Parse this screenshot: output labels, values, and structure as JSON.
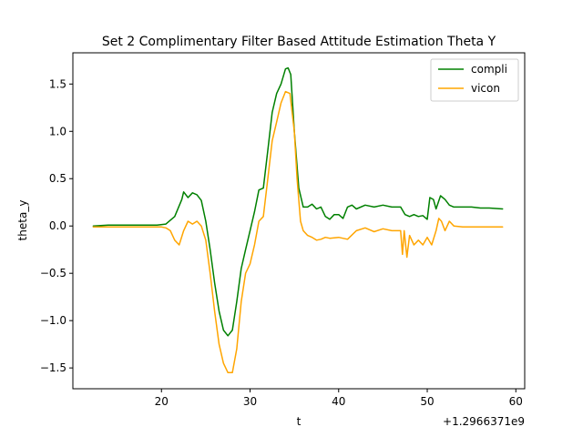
{
  "chart_data": {
    "type": "line",
    "title": "Set 2 Complimentary Filter Based Attitude Estimation Theta Y",
    "xlabel": "t",
    "ylabel": "theta_y",
    "x_offset_label": "+1.2966371e9",
    "xlim": [
      10.0,
      61.0
    ],
    "ylim": [
      -1.72,
      1.83
    ],
    "xticks": [
      20,
      30,
      40,
      50,
      60
    ],
    "xtick_labels": [
      "20",
      "30",
      "40",
      "50",
      "60"
    ],
    "yticks": [
      -1.5,
      -1.0,
      -0.5,
      0.0,
      0.5,
      1.0,
      1.5
    ],
    "ytick_labels": [
      "−1.5",
      "−1.0",
      "−0.5",
      "0.0",
      "0.5",
      "1.0",
      "1.5"
    ],
    "grid": false,
    "legend_position": "top-right",
    "series": [
      {
        "name": "compli",
        "color": "#008000",
        "x": [
          12.3,
          14,
          16,
          18,
          19.5,
          20.5,
          21.5,
          22.3,
          22.5,
          23,
          23.5,
          24,
          24.5,
          25,
          25.5,
          26,
          26.5,
          27,
          27.5,
          28,
          28.5,
          29,
          29.5,
          30,
          30.5,
          31,
          31.5,
          32,
          32.5,
          33,
          33.5,
          34,
          34.3,
          34.6,
          35,
          35.5,
          36,
          36.5,
          37,
          37.5,
          38,
          38.5,
          39,
          39.5,
          40,
          40.5,
          41,
          41.5,
          42,
          43,
          44,
          45,
          46,
          47,
          47.5,
          48,
          48.5,
          49,
          49.5,
          50,
          50.3,
          50.7,
          51,
          51.5,
          52,
          52.5,
          53,
          54,
          55,
          56,
          57,
          58.5
        ],
        "y": [
          0.0,
          0.01,
          0.01,
          0.01,
          0.01,
          0.02,
          0.1,
          0.28,
          0.36,
          0.3,
          0.35,
          0.33,
          0.27,
          0.05,
          -0.25,
          -0.6,
          -0.9,
          -1.1,
          -1.16,
          -1.1,
          -0.8,
          -0.45,
          -0.25,
          -0.05,
          0.15,
          0.38,
          0.4,
          0.8,
          1.2,
          1.4,
          1.5,
          1.66,
          1.67,
          1.6,
          1.0,
          0.4,
          0.2,
          0.2,
          0.23,
          0.18,
          0.2,
          0.1,
          0.07,
          0.12,
          0.12,
          0.08,
          0.2,
          0.22,
          0.18,
          0.22,
          0.2,
          0.22,
          0.2,
          0.2,
          0.12,
          0.1,
          0.12,
          0.1,
          0.11,
          0.07,
          0.3,
          0.28,
          0.18,
          0.32,
          0.28,
          0.22,
          0.2,
          0.2,
          0.2,
          0.19,
          0.19,
          0.18
        ]
      },
      {
        "name": "vicon",
        "color": "#ffa500",
        "x": [
          12.3,
          14,
          16,
          18,
          20,
          20.5,
          21,
          21.5,
          22,
          22.5,
          23,
          23.5,
          24,
          24.5,
          25,
          25.5,
          26,
          26.5,
          27,
          27.5,
          28,
          28.5,
          29,
          29.5,
          30,
          30.5,
          31,
          31.5,
          32,
          32.5,
          33,
          33.5,
          34,
          34.5,
          35,
          35.3,
          35.7,
          36,
          36.5,
          37,
          37.5,
          38,
          38.5,
          39,
          40,
          41,
          42,
          43,
          44,
          45,
          46,
          47,
          47.2,
          47.4,
          47.7,
          48,
          48.5,
          49,
          49.5,
          50,
          50.5,
          51,
          51.3,
          51.6,
          52,
          52.5,
          53,
          54,
          56,
          58.5
        ],
        "y": [
          -0.01,
          -0.01,
          -0.01,
          -0.01,
          -0.01,
          -0.02,
          -0.05,
          -0.15,
          -0.2,
          -0.05,
          0.05,
          0.02,
          0.05,
          0.0,
          -0.15,
          -0.5,
          -0.9,
          -1.25,
          -1.45,
          -1.55,
          -1.55,
          -1.3,
          -0.8,
          -0.5,
          -0.4,
          -0.2,
          0.05,
          0.1,
          0.5,
          0.9,
          1.1,
          1.3,
          1.42,
          1.4,
          1.0,
          0.5,
          0.05,
          -0.05,
          -0.1,
          -0.12,
          -0.15,
          -0.14,
          -0.12,
          -0.13,
          -0.12,
          -0.14,
          -0.05,
          -0.02,
          -0.06,
          -0.03,
          -0.05,
          -0.05,
          -0.3,
          -0.05,
          -0.33,
          -0.1,
          -0.2,
          -0.15,
          -0.2,
          -0.12,
          -0.2,
          -0.05,
          0.08,
          0.05,
          -0.05,
          0.05,
          0.0,
          -0.01,
          -0.01,
          -0.01
        ]
      }
    ]
  }
}
